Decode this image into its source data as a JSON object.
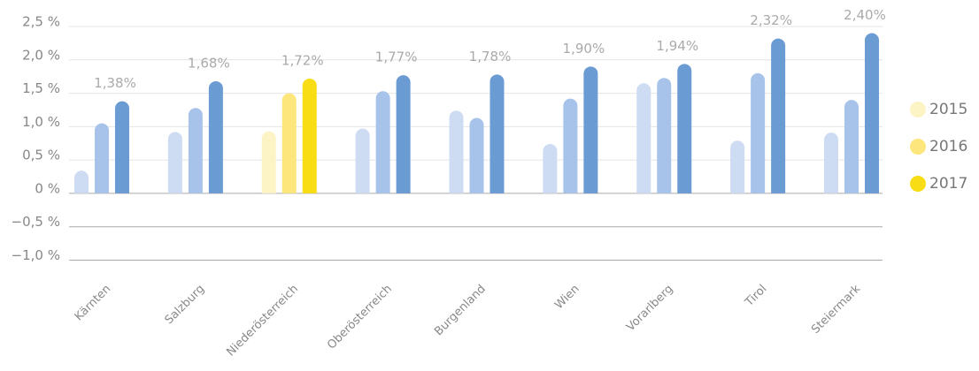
{
  "chart_data": {
    "type": "bar",
    "categories": [
      "Kärnten",
      "Salzburg",
      "Niederösterreich",
      "Oberösterreich",
      "Burgenland",
      "Wien",
      "Vorarlberg",
      "Tirol",
      "Steiermark"
    ],
    "highlight": "Niederösterreich",
    "series": [
      {
        "name": "2015",
        "color": "#cddcf2",
        "highlight_color": "#fdf4c6",
        "values": [
          0.34,
          0.92,
          0.93,
          0.97,
          1.24,
          0.74,
          1.65,
          0.79,
          0.91
        ]
      },
      {
        "name": "2016",
        "color": "#a7c3e9",
        "highlight_color": "#fde67c",
        "values": [
          1.05,
          1.28,
          1.5,
          1.53,
          1.13,
          1.42,
          1.73,
          1.8,
          1.4
        ]
      },
      {
        "name": "2017",
        "color": "#6a9bd3",
        "highlight_color": "#f8dc14",
        "values": [
          1.38,
          1.68,
          1.72,
          1.77,
          1.78,
          1.9,
          1.94,
          2.32,
          2.4
        ],
        "value_labels": [
          "1,38%",
          "1,68%",
          "1,72%",
          "1,77%",
          "1,78%",
          "1,90%",
          "1,94%",
          "2,32%",
          "2,40%"
        ]
      }
    ],
    "ylim": [
      -1.0,
      2.5
    ],
    "yticks": [
      {
        "value": 2.5,
        "label": "2,5 %"
      },
      {
        "value": 2.0,
        "label": "2,0 %"
      },
      {
        "value": 1.5,
        "label": "1,5 %"
      },
      {
        "value": 1.0,
        "label": "1,0 %"
      },
      {
        "value": 0.5,
        "label": "0,5 %"
      },
      {
        "value": 0,
        "label": "0 %"
      },
      {
        "value": -0.5,
        "label": "−0,5 %"
      },
      {
        "value": -1.0,
        "label": "−1,0 %"
      }
    ],
    "grid": true,
    "legend": "right"
  }
}
